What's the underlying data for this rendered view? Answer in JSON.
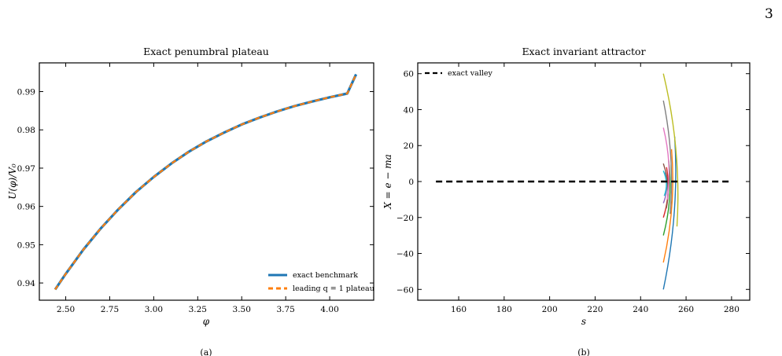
{
  "page_number": "3",
  "panels": [
    {
      "subfigure_label": "(a)"
    },
    {
      "subfigure_label": "(b)"
    }
  ],
  "chart_data": [
    {
      "type": "line",
      "title": "Exact penumbral plateau",
      "xlabel": "φ",
      "ylabel": "U(φ)/V₀",
      "xlim": [
        2.35,
        4.25
      ],
      "ylim": [
        0.9355,
        0.9975
      ],
      "xticks": [
        2.5,
        2.75,
        3.0,
        3.25,
        3.5,
        3.75,
        4.0
      ],
      "xtick_labels": [
        "2.50",
        "2.75",
        "3.00",
        "3.25",
        "3.50",
        "3.75",
        "4.00"
      ],
      "yticks": [
        0.94,
        0.95,
        0.96,
        0.97,
        0.98,
        0.99
      ],
      "ytick_labels": [
        "0.94",
        "0.95",
        "0.96",
        "0.97",
        "0.98",
        "0.99"
      ],
      "grid": false,
      "legend": "lower right",
      "x": [
        2.44,
        2.5,
        2.6,
        2.7,
        2.8,
        2.9,
        3.0,
        3.1,
        3.2,
        3.3,
        3.4,
        3.5,
        3.6,
        3.7,
        3.8,
        3.9,
        4.0,
        4.1,
        4.15
      ],
      "series": [
        {
          "name": "exact benchmark",
          "color": "#1f77b4",
          "style": "solid",
          "values": [
            0.9383,
            0.9424,
            0.9487,
            0.9543,
            0.9593,
            0.9638,
            0.9677,
            0.9712,
            0.9743,
            0.977,
            0.9793,
            0.9814,
            0.9832,
            0.9848,
            0.9862,
            0.9874,
            0.9885,
            0.9895,
            0.9945
          ]
        },
        {
          "name": "leading q = 1 plateau",
          "color": "#ff7f0e",
          "style": "dashed",
          "values": [
            0.9383,
            0.9424,
            0.9487,
            0.9543,
            0.9593,
            0.9638,
            0.9677,
            0.9712,
            0.9743,
            0.977,
            0.9793,
            0.9814,
            0.9832,
            0.9848,
            0.9862,
            0.9874,
            0.9885,
            0.9895,
            0.9945
          ]
        }
      ]
    },
    {
      "type": "line",
      "title": "Exact invariant attractor",
      "xlabel": "s",
      "ylabel": "X = e − ma",
      "xlim": [
        142,
        288
      ],
      "ylim": [
        -66,
        66
      ],
      "xticks": [
        160,
        180,
        200,
        220,
        240,
        260,
        280
      ],
      "xtick_labels": [
        "160",
        "180",
        "200",
        "220",
        "240",
        "260",
        "280"
      ],
      "yticks": [
        -60,
        -40,
        -20,
        0,
        20,
        40,
        60
      ],
      "ytick_labels": [
        "−60",
        "−40",
        "−20",
        "0",
        "20",
        "40",
        "60"
      ],
      "grid": false,
      "legend": "upper left",
      "valley": {
        "name": "exact valley",
        "color": "#000000",
        "style": "dashed",
        "x": [
          150,
          280
        ],
        "y": [
          0,
          0
        ]
      },
      "trajectories": [
        {
          "color": "#1f77b4",
          "x0": 250,
          "x_end": 255.0,
          "y0": -60,
          "y_end": 25
        },
        {
          "color": "#ff7f0e",
          "x0": 250,
          "x_end": 253.6,
          "y0": -45,
          "y_end": 18
        },
        {
          "color": "#2ca02c",
          "x0": 250,
          "x_end": 252.3,
          "y0": -30,
          "y_end": 12
        },
        {
          "color": "#d62728",
          "x0": 250,
          "x_end": 251.4,
          "y0": -20,
          "y_end": 8
        },
        {
          "color": "#9467bd",
          "x0": 250,
          "x_end": 250.6,
          "y0": -12,
          "y_end": 5
        },
        {
          "color": "#8c564b",
          "x0": 250,
          "x_end": 251.3,
          "y0": 10,
          "y_end": -15
        },
        {
          "color": "#e377c2",
          "x0": 250,
          "x_end": 251.8,
          "y0": 30,
          "y_end": -10
        },
        {
          "color": "#7f7f7f",
          "x0": 250,
          "x_end": 253.0,
          "y0": 45,
          "y_end": -18
        },
        {
          "color": "#bcbd22",
          "x0": 250,
          "x_end": 256.0,
          "y0": 60,
          "y_end": -25
        },
        {
          "color": "#17becf",
          "x0": 250,
          "x_end": 250.4,
          "y0": 6,
          "y_end": -8
        }
      ]
    }
  ]
}
